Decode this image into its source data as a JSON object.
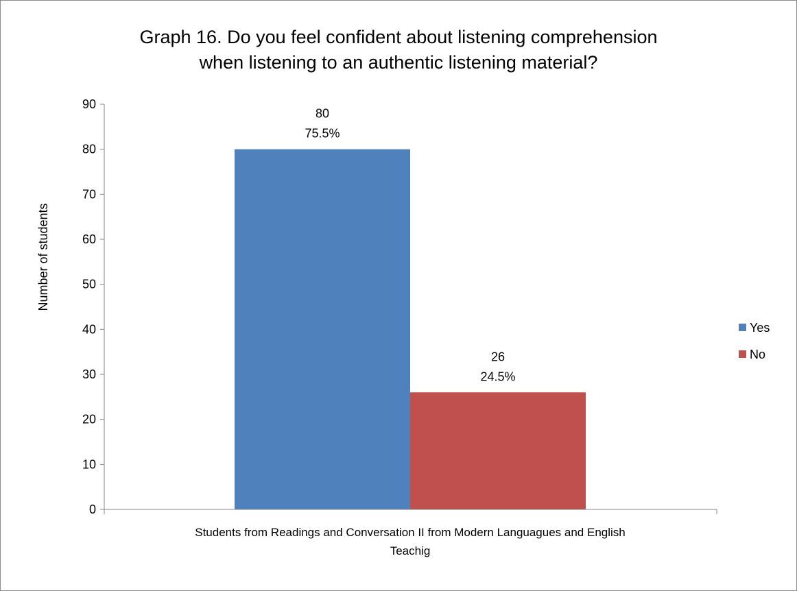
{
  "chart_data": {
    "type": "bar",
    "title_lines": [
      "Graph 16. Do you feel confident about listening comprehension",
      "when listening to an authentic listening material?"
    ],
    "ylabel": "Number of students",
    "xlabel": "",
    "category_lines": [
      "Students from Readings and Conversation II from Modern Languagues and English",
      "Teachig"
    ],
    "categories": [
      "Students from Readings and Conversation II from Modern Languagues and English Teachig"
    ],
    "ylim": [
      0,
      90
    ],
    "yticks": [
      0,
      10,
      20,
      30,
      40,
      50,
      60,
      70,
      80,
      90
    ],
    "grid": false,
    "legend_position": "right",
    "series": [
      {
        "name": "Yes",
        "values": [
          80
        ],
        "percent_labels": [
          "75.5%"
        ],
        "color": "#4F81BD"
      },
      {
        "name": "No",
        "values": [
          26
        ],
        "percent_labels": [
          "24.5%"
        ],
        "color": "#C0504D"
      }
    ]
  }
}
